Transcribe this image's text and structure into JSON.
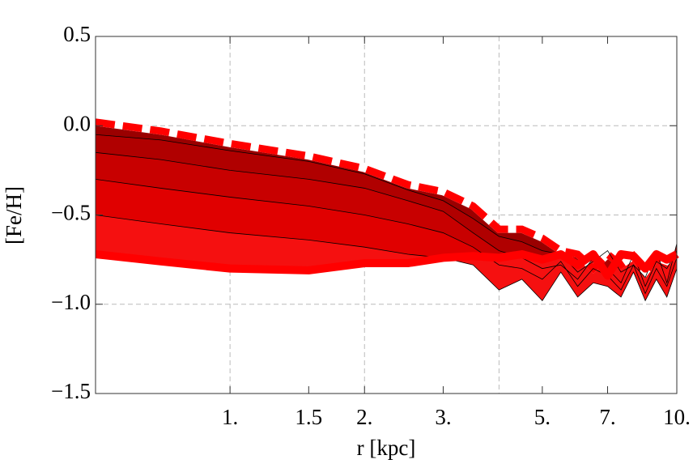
{
  "chart_data": {
    "type": "band-lines",
    "x_label": "r [kpc]",
    "y_label": "[Fe/H]",
    "x": [
      0.5,
      0.7,
      1,
      1.5,
      2,
      2.5,
      3,
      3.5,
      4,
      4.5,
      5,
      5.5,
      6,
      6.5,
      7,
      7.5,
      8,
      8.5,
      9,
      9.5,
      10
    ],
    "series": [
      {
        "color": "#ff0000",
        "style": "dashed",
        "values": [
          0.02,
          -0.03,
          -0.1,
          -0.17,
          -0.24,
          -0.33,
          -0.37,
          -0.45,
          -0.58,
          -0.58,
          -0.63,
          -0.7,
          -0.72,
          -0.8,
          -0.72,
          -0.78,
          -0.73,
          -0.82,
          -0.74,
          -0.76,
          -0.72
        ]
      },
      {
        "color": "#000000",
        "style": "thin",
        "values": [
          -0.05,
          -0.08,
          -0.14,
          -0.2,
          -0.27,
          -0.36,
          -0.42,
          -0.52,
          -0.62,
          -0.65,
          -0.7,
          -0.72,
          -0.82,
          -0.76,
          -0.7,
          -0.82,
          -0.78,
          -0.85,
          -0.7,
          -0.88,
          -0.66
        ]
      },
      {
        "color": "#000000",
        "style": "thin",
        "values": [
          -0.15,
          -0.19,
          -0.25,
          -0.3,
          -0.35,
          -0.42,
          -0.48,
          -0.6,
          -0.7,
          -0.74,
          -0.8,
          -0.78,
          -0.86,
          -0.74,
          -0.8,
          -0.88,
          -0.72,
          -0.9,
          -0.76,
          -0.8,
          -0.7
        ]
      },
      {
        "color": "#000000",
        "style": "thin",
        "values": [
          -0.3,
          -0.35,
          -0.4,
          -0.45,
          -0.5,
          -0.55,
          -0.6,
          -0.68,
          -0.78,
          -0.8,
          -0.86,
          -0.76,
          -0.9,
          -0.8,
          -0.84,
          -0.92,
          -0.78,
          -0.94,
          -0.8,
          -0.9,
          -0.74
        ]
      },
      {
        "color": "#000000",
        "style": "thin",
        "values": [
          -0.5,
          -0.55,
          -0.6,
          -0.64,
          -0.68,
          -0.72,
          -0.74,
          -0.78,
          -0.92,
          -0.86,
          -0.98,
          -0.82,
          -0.96,
          -0.88,
          -0.9,
          -0.96,
          -0.82,
          -0.98,
          -0.86,
          -0.96,
          -0.8
        ]
      },
      {
        "color": "#ff0000",
        "style": "solid",
        "values": [
          -0.72,
          -0.76,
          -0.8,
          -0.81,
          -0.77,
          -0.77,
          -0.74,
          -0.73,
          -0.74,
          -0.72,
          -0.75,
          -0.72,
          -0.78,
          -0.72,
          -0.84,
          -0.72,
          -0.73,
          -0.8,
          -0.72,
          -0.75,
          -0.72
        ]
      }
    ],
    "band_colors": [
      "#9a0000",
      "#b00000",
      "#c80000",
      "#e00000",
      "#f51010"
    ],
    "xlim": [
      0.5,
      10
    ],
    "ylim": [
      -1.5,
      0.5
    ],
    "x_log": true,
    "xticks": [
      {
        "value": 1,
        "label": "1."
      },
      1.5,
      {
        "value": 2,
        "label": "2."
      },
      {
        "value": 3,
        "label": "3."
      },
      {
        "value": 5,
        "label": "5."
      },
      {
        "value": 7,
        "label": "7."
      },
      {
        "value": 10,
        "label": "10."
      }
    ],
    "xgrid": [
      1,
      2,
      4
    ],
    "yticks": [
      {
        "value": -1.5,
        "label": "−1.5"
      },
      {
        "value": -1,
        "label": "−1.0"
      },
      {
        "value": -0.5,
        "label": "−0.5"
      },
      {
        "value": 0,
        "label": "0.0"
      },
      0.5
    ],
    "ygrid": [
      -1,
      -0.5,
      0
    ],
    "grid": true
  }
}
